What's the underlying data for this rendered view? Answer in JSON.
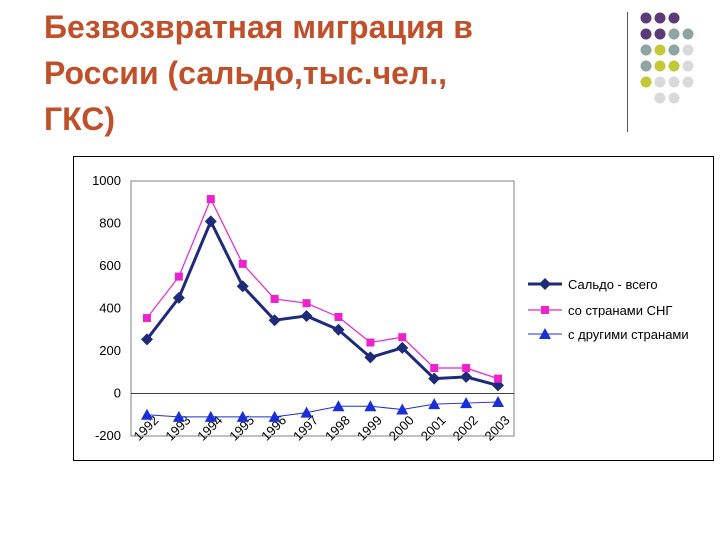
{
  "title": {
    "lines": [
      "Безвозвратная миграция в",
      "России (сальдо,тыс.чел.,",
      "ГКС)"
    ]
  },
  "decoration": {
    "dot_colors": [
      "#5b3a78",
      "#8fa5a3",
      "#c3c837",
      "#d9d9dd"
    ]
  },
  "chart_data": {
    "type": "line",
    "categories": [
      "1992",
      "1993",
      "1994",
      "1995",
      "1996",
      "1997",
      "1998",
      "1999",
      "2000",
      "2001",
      "2002",
      "2003"
    ],
    "ylim": [
      -200,
      1000
    ],
    "yticks": [
      "1000",
      "800",
      "600",
      "400",
      "200",
      "0",
      "-200"
    ],
    "ytick_values": [
      1000,
      800,
      600,
      400,
      200,
      0,
      -200
    ],
    "grid": false,
    "legend_position": "right",
    "series": [
      {
        "name": "Сальдо - всего",
        "values": [
          255,
          450,
          810,
          505,
          345,
          365,
          300,
          170,
          215,
          70,
          78,
          38
        ],
        "color": "#1f2a78",
        "marker": "diamond"
      },
      {
        "name": "со странами СНГ",
        "values": [
          355,
          550,
          915,
          610,
          445,
          425,
          360,
          240,
          265,
          120,
          120,
          70
        ],
        "color": "#ee22cc",
        "marker": "square"
      },
      {
        "name": "с другими странами",
        "values": [
          -100,
          -110,
          -110,
          -110,
          -110,
          -90,
          -60,
          -60,
          -75,
          -50,
          -45,
          -40
        ],
        "color": "#1a2fd6",
        "marker": "triangle"
      }
    ]
  }
}
